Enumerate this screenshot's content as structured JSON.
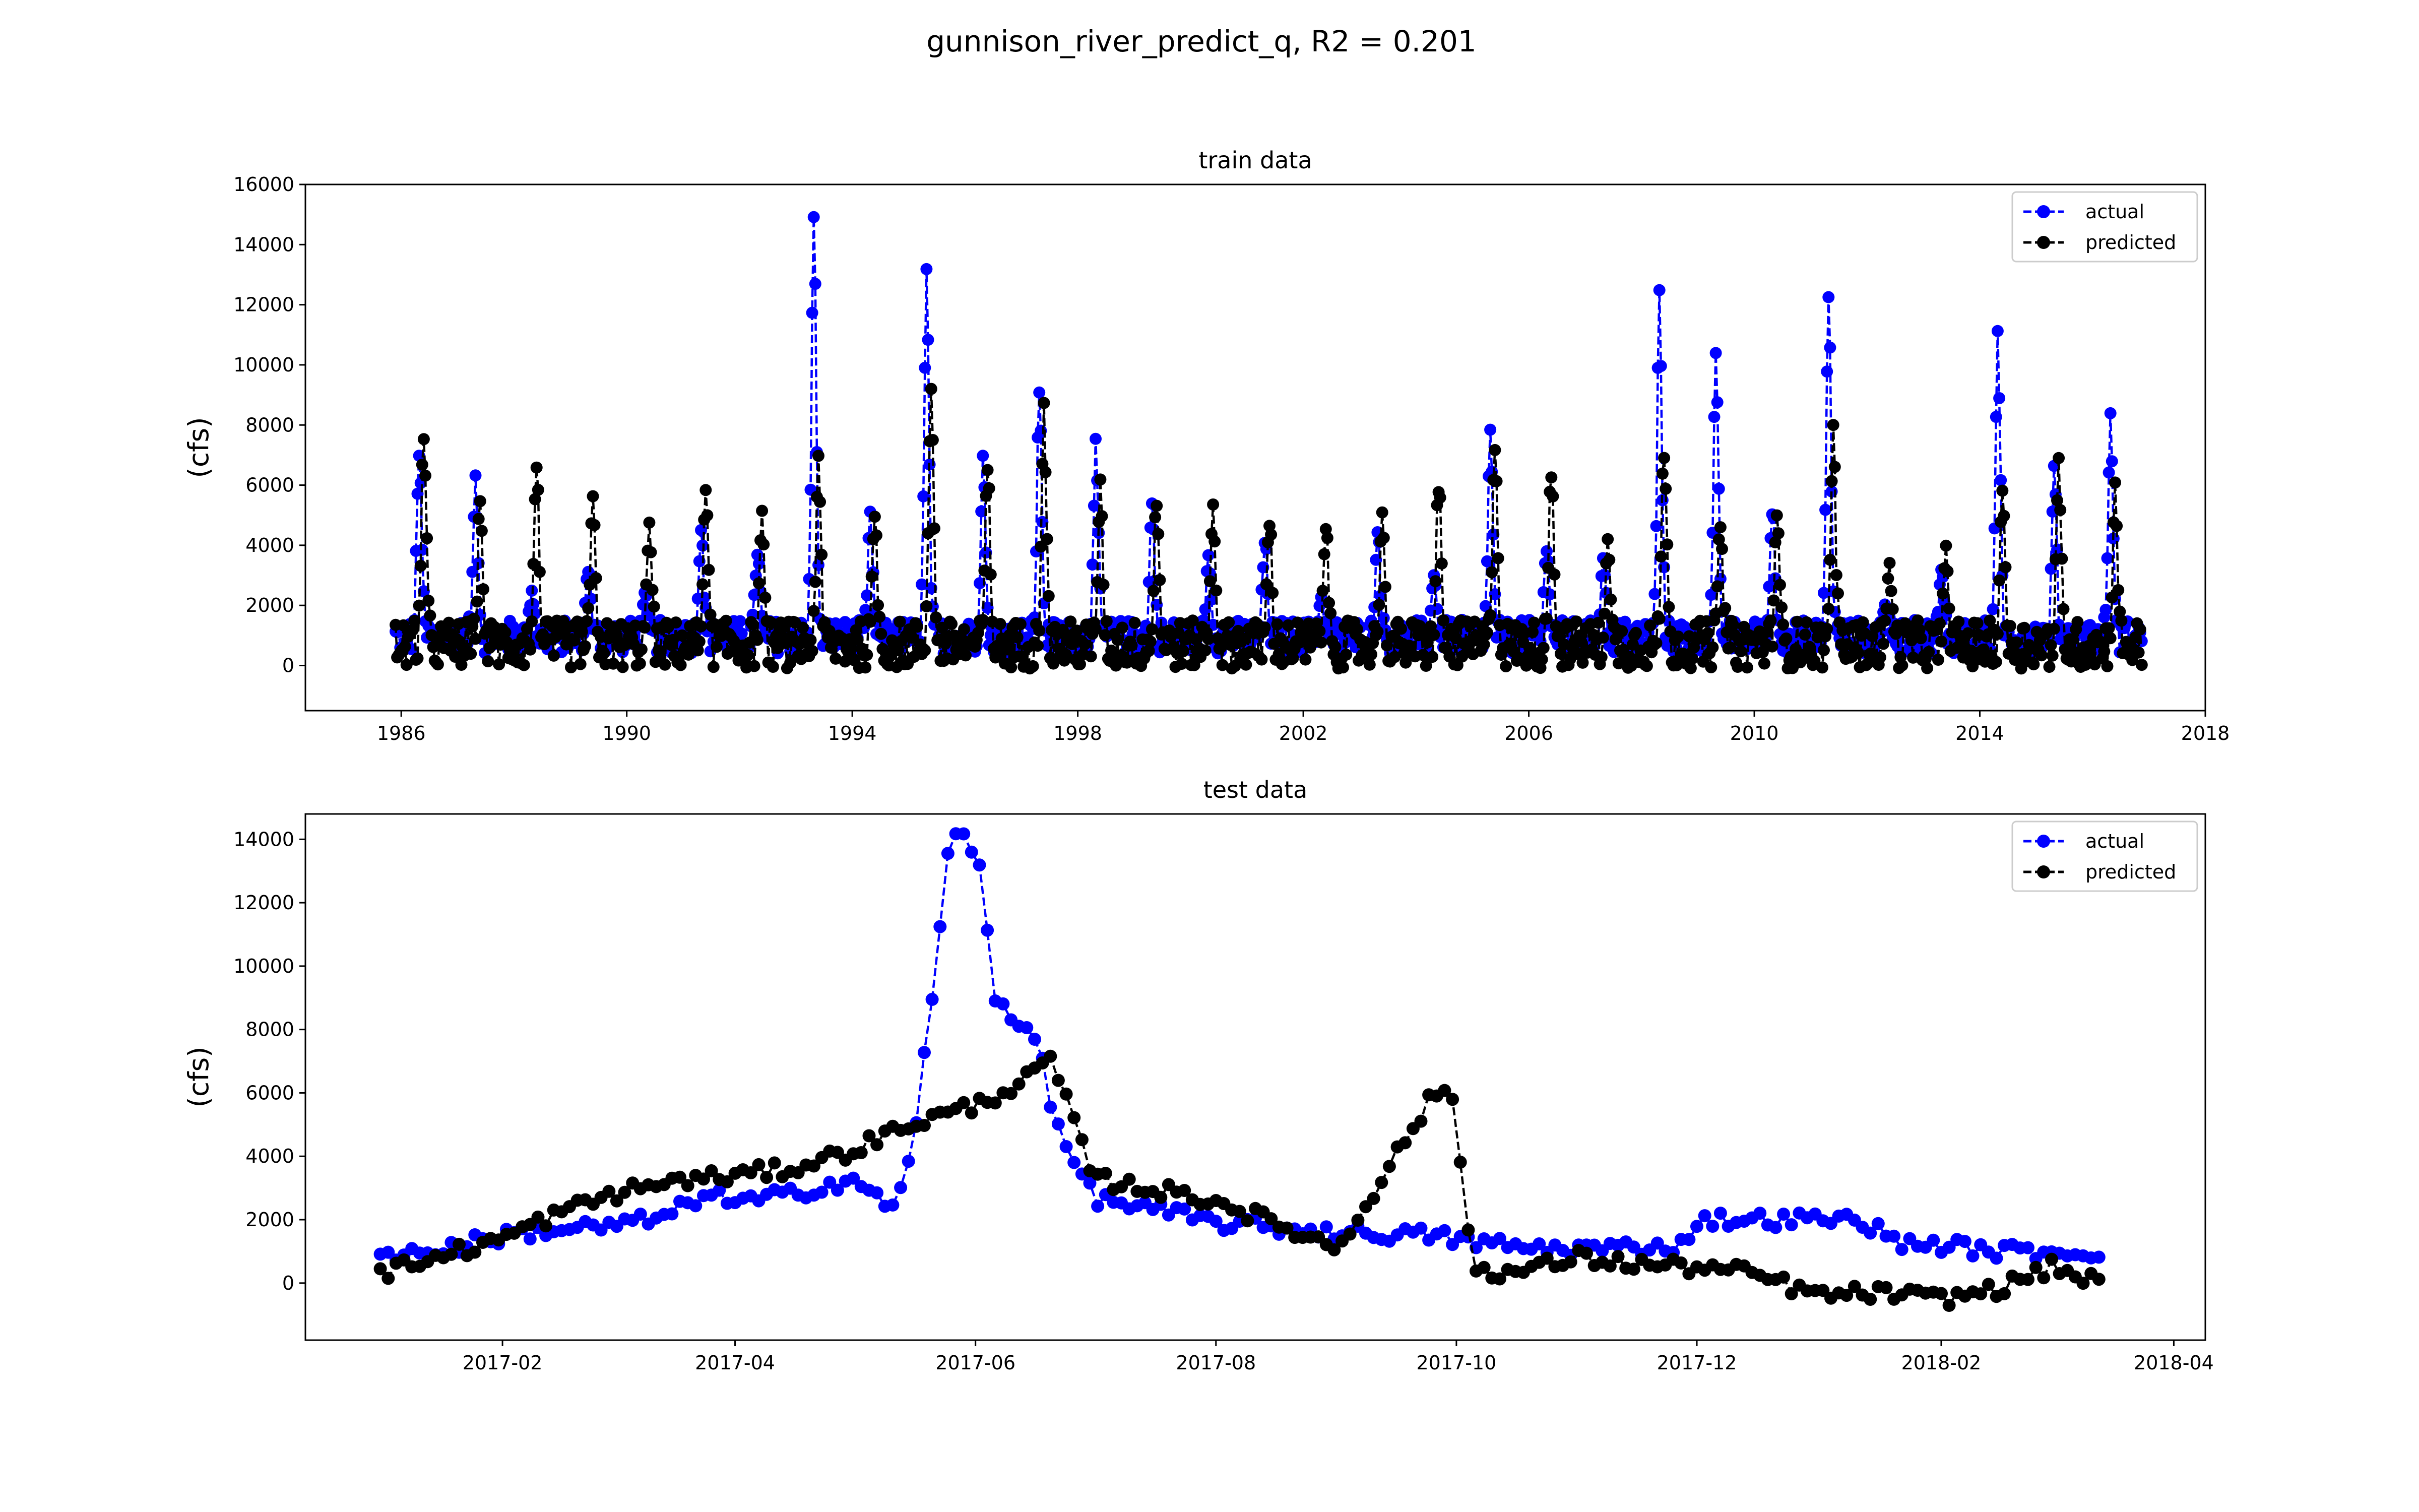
{
  "figure": {
    "title": "gunnison_river_predict_q, R2 = 0.201"
  },
  "colors": {
    "actual": "#0000ff",
    "predicted": "#000000"
  },
  "chart_data": [
    {
      "type": "line",
      "title": "train data",
      "xlabel": "",
      "ylabel": "(cfs)",
      "x_unit": "year",
      "xlim": [
        1984.3,
        2018.0
      ],
      "ylim": [
        -1500,
        16000
      ],
      "xticks": [
        1986,
        1990,
        1994,
        1998,
        2002,
        2006,
        2010,
        2014,
        2018
      ],
      "xtick_labels": [
        "1986",
        "1990",
        "1994",
        "1998",
        "2002",
        "2006",
        "2010",
        "2014",
        "2018"
      ],
      "yticks": [
        0,
        2000,
        4000,
        6000,
        8000,
        10000,
        12000,
        14000,
        16000
      ],
      "ytick_labels": [
        "0",
        "2000",
        "4000",
        "6000",
        "8000",
        "10000",
        "12000",
        "14000",
        "16000"
      ],
      "legend": {
        "position": "upper right",
        "entries": [
          "actual",
          "predicted"
        ]
      },
      "grid": false,
      "annual_peaks": {
        "year": [
          1986,
          1987,
          1988,
          1989,
          1990,
          1991,
          1992,
          1993,
          1994,
          1995,
          1996,
          1997,
          1998,
          1999,
          2000,
          2001,
          2002,
          2003,
          2004,
          2005,
          2006,
          2007,
          2008,
          2009,
          2010,
          2011,
          2012,
          2013,
          2014,
          2015,
          2016
        ],
        "actual": [
          7800,
          6400,
          2500,
          3500,
          2500,
          4900,
          4000,
          15300,
          5300,
          14000,
          7200,
          9700,
          7900,
          5800,
          4000,
          4400,
          2400,
          4800,
          3200,
          8100,
          4400,
          3800,
          12600,
          11100,
          5700,
          13100,
          2200,
          3400,
          11800,
          6700,
          8600
        ],
        "predicted": [
          8600,
          5700,
          7100,
          5800,
          5000,
          6100,
          5200,
          7100,
          5500,
          9700,
          7100,
          9200,
          6300,
          5900,
          5400,
          5300,
          5000,
          5100,
          6600,
          8000,
          7100,
          4300,
          7800,
          5000,
          5200,
          8200,
          3500,
          4100,
          6300,
          7100,
          6100
        ]
      }
    },
    {
      "type": "line",
      "title": "test data",
      "xlabel": "",
      "ylabel": "(cfs)",
      "x_unit": "month",
      "xlim": [
        "2016-12-13",
        "2018-04-09"
      ],
      "ylim": [
        -1800,
        14800
      ],
      "xticks": [
        "2017-02",
        "2017-04",
        "2017-06",
        "2017-08",
        "2017-10",
        "2017-12",
        "2018-02",
        "2018-04"
      ],
      "xtick_labels": [
        "2017-02",
        "2017-04",
        "2017-06",
        "2017-08",
        "2017-10",
        "2017-12",
        "2018-02",
        "2018-04"
      ],
      "yticks": [
        0,
        2000,
        4000,
        6000,
        8000,
        10000,
        12000,
        14000
      ],
      "ytick_labels": [
        "0",
        "2000",
        "4000",
        "6000",
        "8000",
        "10000",
        "12000",
        "14000"
      ],
      "legend": {
        "position": "upper right",
        "entries": [
          "actual",
          "predicted"
        ]
      },
      "grid": false,
      "series": [
        {
          "name": "actual",
          "x": [
            "2017-01-01",
            "2017-01-15",
            "2017-02-01",
            "2017-02-15",
            "2017-03-01",
            "2017-03-15",
            "2017-03-25",
            "2017-04-01",
            "2017-04-15",
            "2017-05-01",
            "2017-05-10",
            "2017-05-15",
            "2017-05-18",
            "2017-05-20",
            "2017-05-22",
            "2017-05-24",
            "2017-05-26",
            "2017-05-28",
            "2017-05-30",
            "2017-06-02",
            "2017-06-06",
            "2017-06-10",
            "2017-06-14",
            "2017-06-18",
            "2017-06-21",
            "2017-07-01",
            "2017-08-01",
            "2017-09-01",
            "2017-09-25",
            "2017-10-05",
            "2017-10-20",
            "2017-11-10",
            "2017-11-28",
            "2017-12-01",
            "2017-12-15",
            "2018-01-01",
            "2018-01-12",
            "2018-01-20",
            "2018-02-01",
            "2018-02-15",
            "2018-03-01",
            "2018-03-13"
          ],
          "y": [
            900,
            1000,
            1500,
            1700,
            1800,
            2100,
            2900,
            2500,
            2800,
            3300,
            2300,
            3700,
            5800,
            8400,
            9400,
            12900,
            14300,
            14400,
            13600,
            13100,
            9000,
            8500,
            8000,
            7300,
            5000,
            2700,
            1900,
            1600,
            1500,
            1300,
            1100,
            1100,
            1200,
            2000,
            2000,
            2000,
            2000,
            1300,
            1200,
            1000,
            1000,
            1000
          ]
        },
        {
          "name": "predicted",
          "x": [
            "2017-01-01",
            "2017-01-15",
            "2017-02-01",
            "2017-02-15",
            "2017-03-01",
            "2017-03-15",
            "2017-04-01",
            "2017-04-15",
            "2017-05-01",
            "2017-05-15",
            "2017-06-01",
            "2017-06-15",
            "2017-06-20",
            "2017-07-01",
            "2017-08-01",
            "2017-09-01",
            "2017-09-25",
            "2017-09-30",
            "2017-10-05",
            "2017-10-15",
            "2017-11-01",
            "2017-11-15",
            "2017-12-01",
            "2017-12-15",
            "2018-01-01",
            "2018-01-15",
            "2018-02-01",
            "2018-02-15",
            "2018-03-01",
            "2018-03-13"
          ],
          "y": [
            300,
            800,
            1400,
            2200,
            2800,
            3200,
            3400,
            3600,
            4200,
            5000,
            5600,
            6500,
            7100,
            3300,
            2600,
            1100,
            5900,
            6000,
            500,
            300,
            800,
            600,
            500,
            300,
            -400,
            -300,
            -500,
            -200,
            500,
            0
          ]
        }
      ]
    }
  ]
}
